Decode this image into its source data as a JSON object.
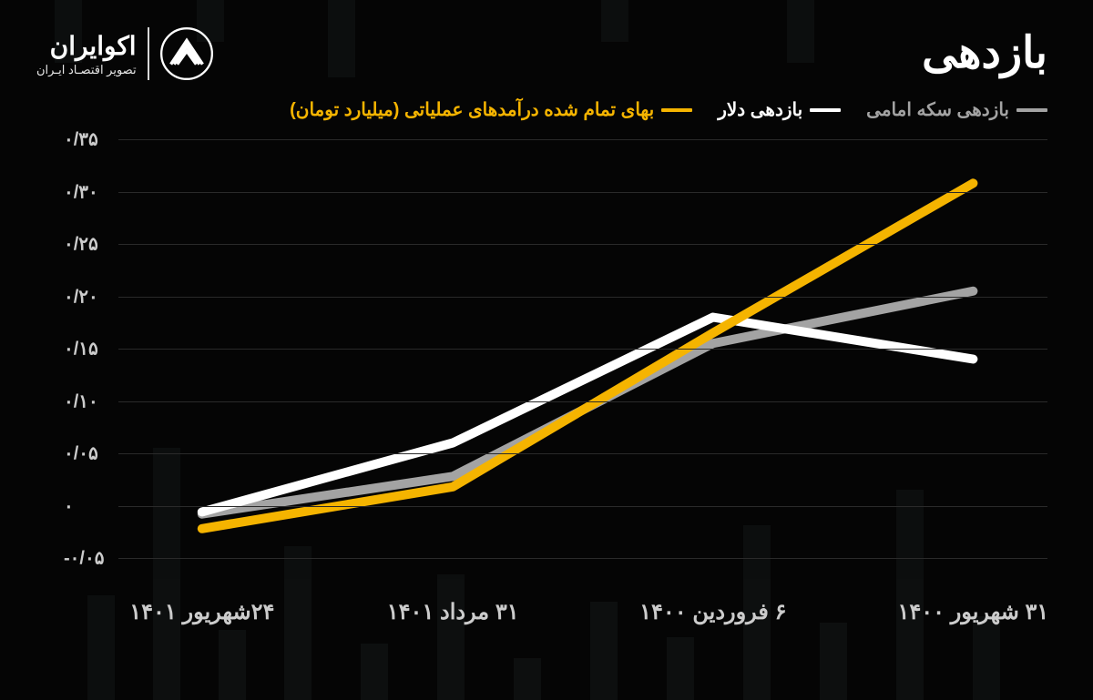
{
  "title": "بازدهی",
  "logo": {
    "title": "اکوایران",
    "subtitle": "تصویر اقتصـاد ایـران"
  },
  "legend": [
    {
      "label": "بازدهی سکه امامی",
      "color": "#a3a3a3"
    },
    {
      "label": "بازدهی دلار",
      "color": "#ffffff"
    },
    {
      "label": "بهای تمام شده درآمدهای عملیاتی (میلیارد تومان)",
      "color": "#f5b400"
    }
  ],
  "chart": {
    "type": "line",
    "background_color": "#050505",
    "grid_color": "#2a2a2a",
    "ymin": -0.05,
    "ymax": 0.35,
    "y_ticks": [
      {
        "v": -0.05,
        "label": "-٠/٠۵"
      },
      {
        "v": 0.0,
        "label": "٠"
      },
      {
        "v": 0.05,
        "label": "٠/٠۵"
      },
      {
        "v": 0.1,
        "label": "٠/١٠"
      },
      {
        "v": 0.15,
        "label": "٠/١۵"
      },
      {
        "v": 0.2,
        "label": "٠/٢٠"
      },
      {
        "v": 0.25,
        "label": "٠/٢۵"
      },
      {
        "v": 0.3,
        "label": "٠/٣٠"
      },
      {
        "v": 0.35,
        "label": "٠/٣۵"
      }
    ],
    "x_categories": [
      "۳۱ شهریور ۱۴۰۰",
      "۶ فروردین ۱۴۰۰",
      "۳۱ مرداد ۱۴۰۱",
      "۲۴شهریور ۱۴۰۱"
    ],
    "x_positions_pct": [
      92,
      64,
      36,
      9
    ],
    "series": [
      {
        "name": "بازدهی سکه امامی",
        "color": "#a3a3a3",
        "width": 5,
        "values": [
          0.205,
          0.155,
          0.028,
          -0.008
        ]
      },
      {
        "name": "بازدهی دلار",
        "color": "#ffffff",
        "width": 5,
        "values": [
          0.14,
          0.18,
          0.06,
          -0.006
        ]
      },
      {
        "name": "بهای تمام شده درآمدهای عملیاتی",
        "color": "#f5b400",
        "width": 5,
        "values": [
          0.308,
          0.165,
          0.018,
          -0.022
        ]
      }
    ]
  },
  "label_color": "#cccccc",
  "label_fontsize": 20,
  "x_label_fontsize": 24,
  "title_fontsize": 48
}
